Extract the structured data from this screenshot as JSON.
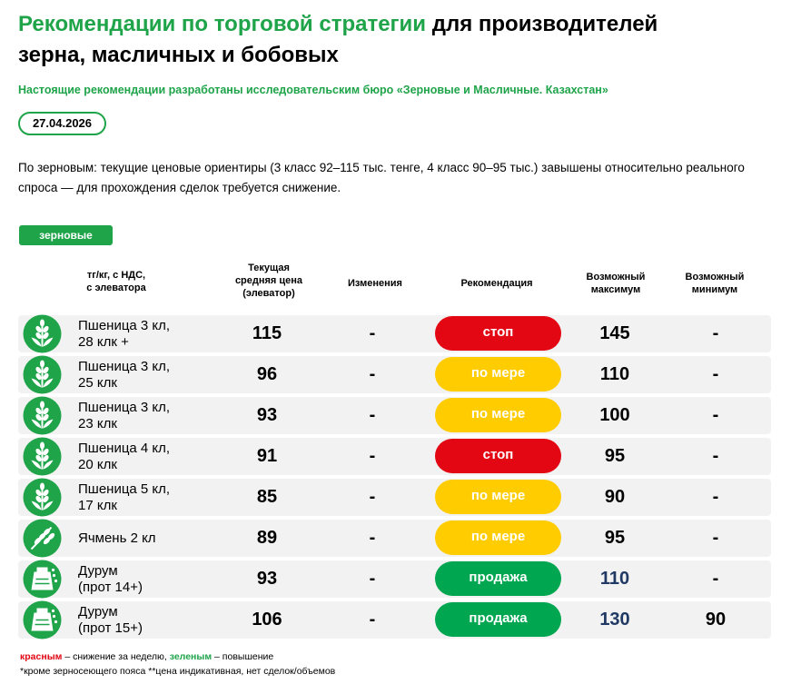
{
  "header": {
    "title_accent": "Рекомендации по торговой стратегии",
    "title_rest": "для производителей зерна, масличных и бобовых",
    "subtitle": "Настоящие рекомендации разработаны исследовательским бюро «Зерновые и Масличные. Казахстан»",
    "date": "27.04.2026"
  },
  "intro": "По зерновым: текущие ценовые ориентиры (3 класс 92–115 тыс. тенге, 4 класс 90–95 тыс.) завышены относительно реального спроса — для прохождения сделок требуется снижение.",
  "section": "зерновые",
  "table": {
    "columns": [
      [
        "тг/кг, с НДС,",
        "с элеватора"
      ],
      [
        "Текущая",
        "средняя цена",
        "(элеватор)"
      ],
      [
        "Изменения"
      ],
      [
        "Рекомендация"
      ],
      [
        "Возможный",
        "максимум"
      ],
      [
        "Возможный",
        "минимум"
      ]
    ],
    "rows": [
      {
        "name": [
          "Пшеница 3 кл,",
          "28 клк +"
        ],
        "icon": "wheat",
        "price": 115,
        "change": "-",
        "recommendation": "стоп",
        "recommendation_color": "#e30613",
        "max": 145,
        "max_color": "#000000",
        "min": "-"
      },
      {
        "name": [
          "Пшеница 3 кл,",
          "25 клк"
        ],
        "icon": "wheat",
        "price": 96,
        "change": "-",
        "recommendation": "по мере",
        "recommendation_color": "#ffcc00",
        "max": 110,
        "max_color": "#000000",
        "min": "-"
      },
      {
        "name": [
          "Пшеница 3 кл,",
          "23 клк"
        ],
        "icon": "wheat",
        "price": 93,
        "change": "-",
        "recommendation": "по мере",
        "recommendation_color": "#ffcc00",
        "max": 100,
        "max_color": "#000000",
        "min": "-"
      },
      {
        "name": [
          "Пшеница 4 кл,",
          "20 клк"
        ],
        "icon": "wheat",
        "price": 91,
        "change": "-",
        "recommendation": "стоп",
        "recommendation_color": "#e30613",
        "max": 95,
        "max_color": "#000000",
        "min": "-"
      },
      {
        "name": [
          "Пшеница 5 кл,",
          "17 клк"
        ],
        "icon": "wheat",
        "price": 85,
        "change": "-",
        "recommendation": "по мере",
        "recommendation_color": "#ffcc00",
        "max": 90,
        "max_color": "#000000",
        "min": "-"
      },
      {
        "name": [
          "Ячмень 2 кл"
        ],
        "icon": "barley",
        "price": 89,
        "change": "-",
        "recommendation": "по мере",
        "recommendation_color": "#ffcc00",
        "max": 95,
        "max_color": "#000000",
        "min": "-"
      },
      {
        "name": [
          "Дурум",
          "(прот 14+)"
        ],
        "icon": "bag",
        "price": 93,
        "change": "-",
        "recommendation": "продажа",
        "recommendation_color": "#00a650",
        "max": 110,
        "max_color": "#1f3864",
        "min": "-"
      },
      {
        "name": [
          "Дурум",
          "(прот 15+)"
        ],
        "icon": "bag",
        "price": 106,
        "change": "-",
        "recommendation": "продажа",
        "recommendation_color": "#00a650",
        "max": 130,
        "max_color": "#1f3864",
        "min": 90
      }
    ]
  },
  "footer": {
    "legend": [
      {
        "text": "красным",
        "color": "#e30613"
      },
      {
        "text": " – снижение за неделю, ",
        "color": "#000000"
      },
      {
        "text": "зеленым",
        "color": "#1fa44a"
      },
      {
        "text": " – повышение",
        "color": "#000000"
      }
    ],
    "note": "*кроме зерносеющего пояса **цена индикативная, нет сделок/объемов"
  }
}
